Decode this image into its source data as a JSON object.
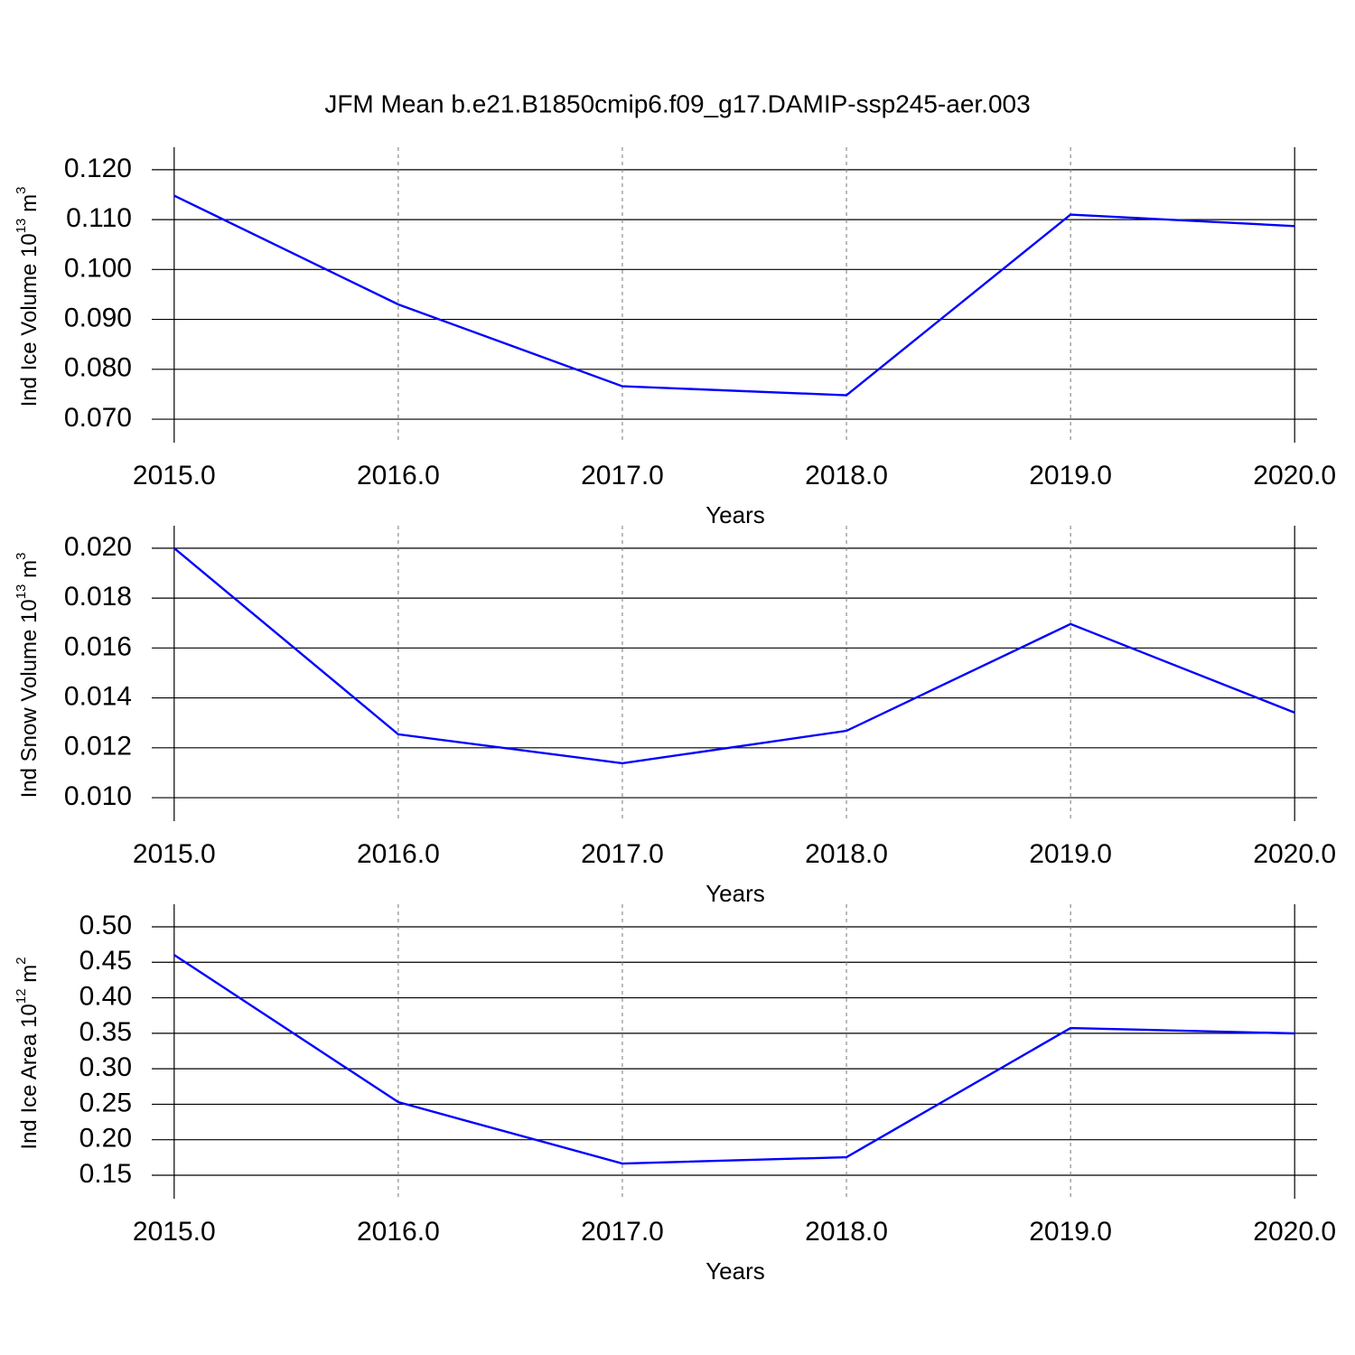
{
  "title": "JFM Mean b.e21.B1850cmip6.f09_g17.DAMIP-ssp245-aer.003",
  "chart_data": [
    {
      "type": "line",
      "ylabel": [
        "Ind Ice Volume 10",
        "13",
        " m",
        "3"
      ],
      "xlabel": "Years",
      "x": [
        2015,
        2016,
        2017,
        2018,
        2019,
        2020
      ],
      "series": [
        {
          "color": "#0000ff",
          "values": [
            0.1148,
            0.093,
            0.0766,
            0.0748,
            0.111,
            0.1087
          ]
        }
      ],
      "xlim": [
        2014.9,
        2020.1
      ],
      "ylim": [
        0.0653,
        0.1245
      ],
      "xticks": [
        {
          "value": 2015,
          "label": "2015.0"
        },
        {
          "value": 2016,
          "label": "2016.0"
        },
        {
          "value": 2017,
          "label": "2017.0"
        },
        {
          "value": 2018,
          "label": "2018.0"
        },
        {
          "value": 2019,
          "label": "2019.0"
        },
        {
          "value": 2020,
          "label": "2020.0"
        }
      ],
      "yticks": [
        {
          "value": 0.07,
          "label": "0.070"
        },
        {
          "value": 0.08,
          "label": "0.080"
        },
        {
          "value": 0.09,
          "label": "0.090"
        },
        {
          "value": 0.1,
          "label": "0.100"
        },
        {
          "value": 0.11,
          "label": "0.110"
        },
        {
          "value": 0.12,
          "label": "0.120"
        }
      ],
      "grid": true
    },
    {
      "type": "line",
      "ylabel": [
        "Ind Snow Volume 10",
        "13",
        " m",
        "3"
      ],
      "xlabel": "Years",
      "x": [
        2015,
        2016,
        2017,
        2018,
        2019,
        2020
      ],
      "series": [
        {
          "color": "#0000ff",
          "values": [
            0.02,
            0.01254,
            0.01138,
            0.01268,
            0.01696,
            0.01341
          ]
        }
      ],
      "xlim": [
        2014.9,
        2020.1
      ],
      "ylim": [
        0.00906,
        0.0209
      ],
      "xticks": [
        {
          "value": 2015,
          "label": "2015.0"
        },
        {
          "value": 2016,
          "label": "2016.0"
        },
        {
          "value": 2017,
          "label": "2017.0"
        },
        {
          "value": 2018,
          "label": "2018.0"
        },
        {
          "value": 2019,
          "label": "2019.0"
        },
        {
          "value": 2020,
          "label": "2020.0"
        }
      ],
      "yticks": [
        {
          "value": 0.01,
          "label": "0.010"
        },
        0.012,
        0.014,
        0.016,
        0.018,
        {
          "value": 0.02,
          "label": "0.020"
        }
      ],
      "grid": true
    },
    {
      "type": "line",
      "ylabel": [
        "Ind Ice Area 10",
        "12",
        " m",
        "2"
      ],
      "xlabel": "Years",
      "x": [
        2015,
        2016,
        2017,
        2018,
        2019,
        2020
      ],
      "series": [
        {
          "color": "#0000ff",
          "values": [
            0.4604,
            0.253,
            0.1665,
            0.1754,
            0.3574,
            0.3498
          ]
        }
      ],
      "xlim": [
        2014.9,
        2020.1
      ],
      "ylim": [
        0.1169,
        0.5318
      ],
      "xticks": [
        {
          "value": 2015,
          "label": "2015.0"
        },
        {
          "value": 2016,
          "label": "2016.0"
        },
        {
          "value": 2017,
          "label": "2017.0"
        },
        {
          "value": 2018,
          "label": "2018.0"
        },
        {
          "value": 2019,
          "label": "2019.0"
        },
        {
          "value": 2020,
          "label": "2020.0"
        }
      ],
      "yticks": [
        0.15,
        {
          "value": 0.2,
          "label": "0.20"
        },
        0.25,
        {
          "value": 0.3,
          "label": "0.30"
        },
        0.35,
        {
          "value": 0.4,
          "label": "0.40"
        },
        0.45,
        {
          "value": 0.5,
          "label": "0.50"
        }
      ],
      "grid": true
    }
  ]
}
